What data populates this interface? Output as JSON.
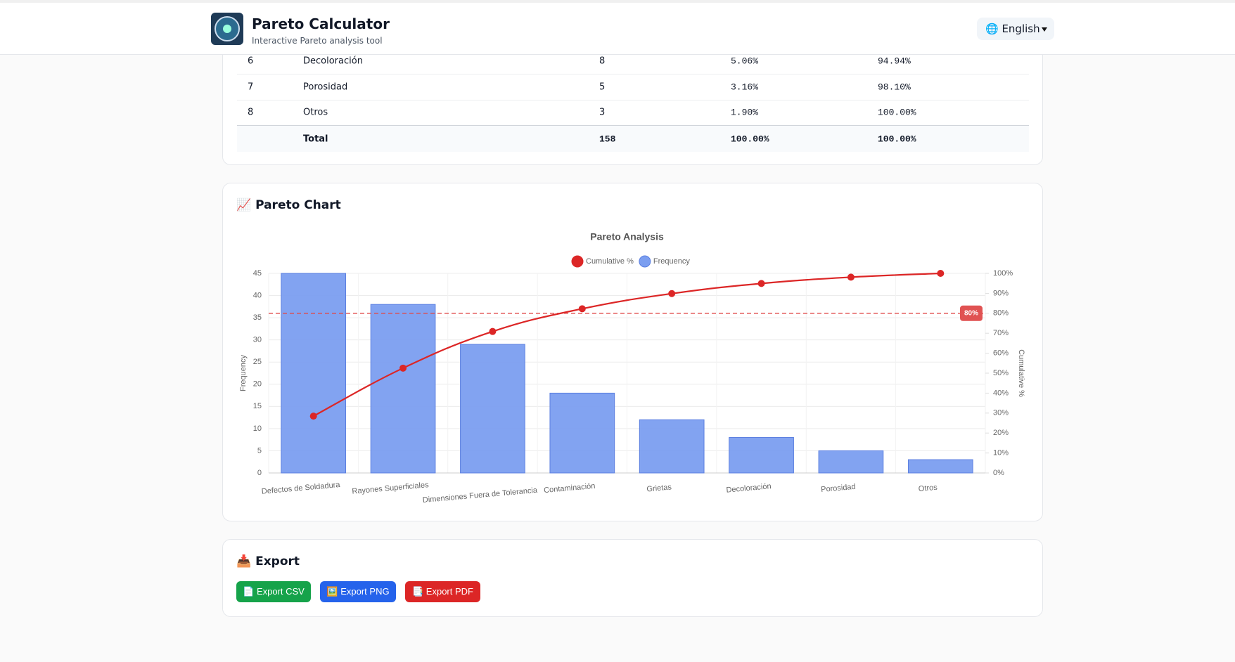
{
  "header": {
    "title": "Pareto Calculator",
    "subtitle": "Interactive Pareto analysis tool",
    "language": "🌐 English"
  },
  "table": {
    "rows": [
      [
        "6",
        "Decoloración",
        "8",
        "5.06%",
        "94.94%"
      ],
      [
        "7",
        "Porosidad",
        "5",
        "3.16%",
        "98.10%"
      ],
      [
        "8",
        "Otros",
        "3",
        "1.90%",
        "100.00%"
      ]
    ],
    "total": [
      "Total",
      "158",
      "100.00%",
      "100.00%"
    ]
  },
  "chart_section": {
    "heading": "📈 Pareto Chart"
  },
  "chart_data": {
    "type": "pareto",
    "title": "Pareto Analysis",
    "categories": [
      "Defectos de Soldadura",
      "Rayones Superficiales",
      "Dimensiones Fuera de Tolerancia",
      "Contaminación",
      "Grietas",
      "Decoloración",
      "Porosidad",
      "Otros"
    ],
    "series": [
      {
        "name": "Cumulative %",
        "type": "line",
        "axis": "y2",
        "color": "#dc2626",
        "values": [
          28.48,
          52.53,
          70.89,
          82.28,
          89.87,
          94.94,
          98.1,
          100
        ]
      },
      {
        "name": "Frequency",
        "type": "bar",
        "color": "#7b9ef0",
        "values": [
          45,
          38,
          29,
          18,
          12,
          8,
          5,
          3
        ]
      }
    ],
    "ylabel": "Frequency",
    "y2label": "Cumulative %",
    "ylim": [
      0,
      45
    ],
    "yticks": [
      0,
      5,
      10,
      15,
      20,
      25,
      30,
      35,
      40,
      45
    ],
    "y2lim": [
      0,
      100
    ],
    "y2ticks": [
      {
        "value": 0,
        "label": "0%"
      },
      {
        "value": 10,
        "label": "10%"
      },
      {
        "value": 20,
        "label": "20%"
      },
      {
        "value": 30,
        "label": "30%"
      },
      {
        "value": 40,
        "label": "40%"
      },
      {
        "value": 50,
        "label": "50%"
      },
      {
        "value": 60,
        "label": "60%"
      },
      {
        "value": 70,
        "label": "70%"
      },
      {
        "value": 80,
        "label": "80%"
      },
      {
        "value": 90,
        "label": "90%"
      },
      {
        "value": 100,
        "label": "100%"
      }
    ],
    "threshold": {
      "value": 80,
      "label": "80%"
    },
    "grid": true
  },
  "export": {
    "heading": "📥 Export",
    "buttons": [
      {
        "label": "📄 Export CSV",
        "color": "#16a34a"
      },
      {
        "label": "🖼️ Export PNG",
        "color": "#2563eb"
      },
      {
        "label": "📑 Export PDF",
        "color": "#dc2626"
      }
    ]
  }
}
